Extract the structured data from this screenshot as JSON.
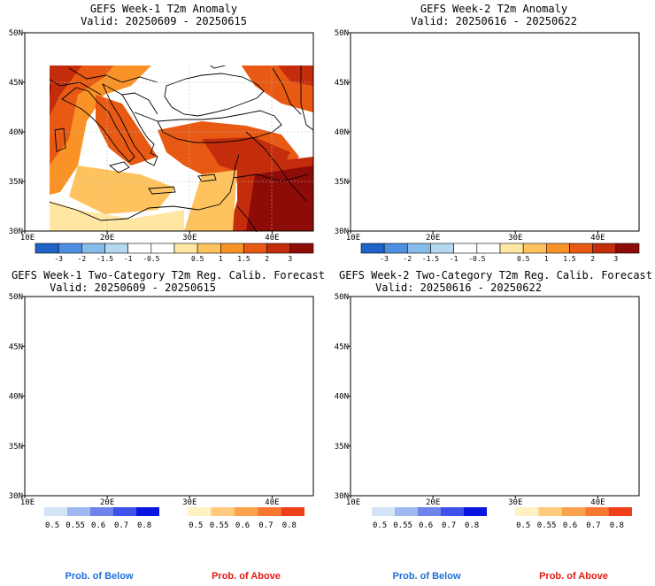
{
  "palette": {
    "anom_colors": [
      "#1f63c9",
      "#4d8ee0",
      "#86bce9",
      "#b6d7f0",
      "#ffffff",
      "#ffffff",
      "#ffe7a3",
      "#fec35f",
      "#f99328",
      "#e85a14",
      "#c42d0c",
      "#8e0c08"
    ],
    "anom_ticks": [
      "-3",
      "-2",
      "-1.5",
      "-1",
      "-0.5",
      "0.5",
      "1",
      "1.5",
      "2",
      "3"
    ],
    "below_colors": [
      "#d2e4f6",
      "#9fb8ef",
      "#6e84ea",
      "#3f51e8",
      "#0a16df"
    ],
    "below_ticks": [
      "0.5",
      "0.55",
      "0.6",
      "0.7",
      "0.8"
    ],
    "above_colors": [
      "#fff1c2",
      "#ffca7d",
      "#fca14c",
      "#f6772f",
      "#ef3e1a"
    ],
    "above_ticks": [
      "0.5",
      "0.55",
      "0.6",
      "0.7",
      "0.8"
    ],
    "sea": "#d6f3f8"
  },
  "axes": {
    "lat_ticks": [
      "50N",
      "45N",
      "40N",
      "35N",
      "30N"
    ],
    "lon_ticks": [
      "10E",
      "20E",
      "30E",
      "40E"
    ]
  },
  "panels": [
    {
      "id": "w1-anom",
      "title": "GEFS Week-1 T2m Anomaly",
      "valid": "Valid: 20250609 - 20250615"
    },
    {
      "id": "w2-anom",
      "title": "GEFS Week-2 T2m Anomaly",
      "valid": "Valid: 20250616 - 20250622"
    },
    {
      "id": "w1-prob",
      "title": "GEFS Week-1 Two-Category T2m Reg. Calib. Forecast",
      "valid": "Valid: 20250609 - 20250615"
    },
    {
      "id": "w2-prob",
      "title": "GEFS Week-2 Two-Category T2m Reg. Calib. Forecast",
      "valid": "Valid: 20250616 - 20250622"
    }
  ],
  "legend": {
    "prob_below": "Prob. of Below",
    "prob_above": "Prob. of Above",
    "below_color": "#1f6fd8",
    "above_color": "#e21a14"
  }
}
